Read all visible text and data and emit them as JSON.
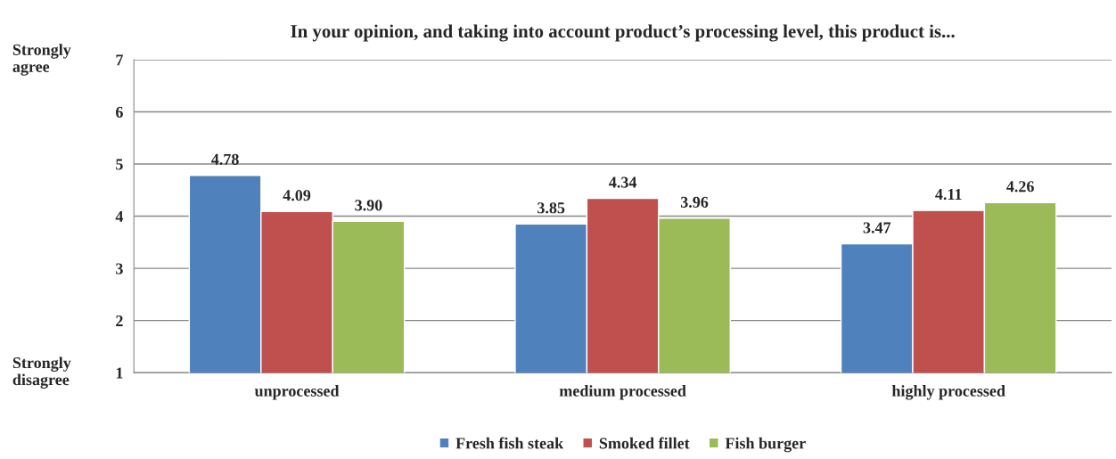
{
  "chart_data": {
    "type": "bar",
    "title": "In your opinion, and taking into account product’s processing level, this product is...",
    "categories": [
      "unprocessed",
      "medium processed",
      "highly processed"
    ],
    "series": [
      {
        "name": "Fresh fish steak",
        "color": "#4f81bd",
        "values": [
          4.78,
          3.85,
          3.47
        ],
        "value_labels": [
          "4.78",
          "3.85",
          "3.47"
        ]
      },
      {
        "name": "Smoked fillet",
        "color": "#c0504d",
        "values": [
          4.09,
          4.34,
          4.11
        ],
        "value_labels": [
          "4.09",
          "4.34",
          "4.11"
        ]
      },
      {
        "name": "Fish burger",
        "color": "#9bbb59",
        "values": [
          3.9,
          3.96,
          4.26
        ],
        "value_labels": [
          "3.90",
          "3.96",
          "4.26"
        ]
      }
    ],
    "ylim": [
      1,
      7
    ],
    "yticks": [
      1,
      2,
      3,
      4,
      5,
      6,
      7
    ],
    "grid": "y",
    "legend": "bottom",
    "annotations": [
      "Strongly\nagree",
      "Strongly\ndisagree"
    ]
  }
}
